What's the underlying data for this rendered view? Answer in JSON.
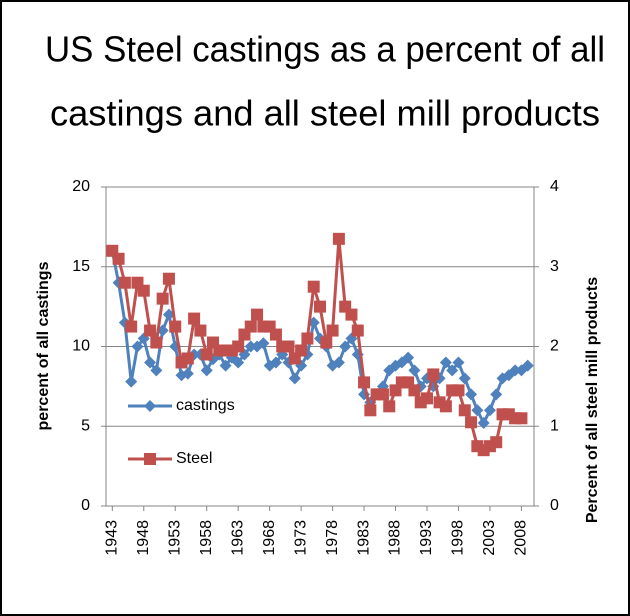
{
  "chart_data": {
    "type": "line",
    "title": [
      "US Steel castings as a percent of all",
      "castings and all steel mill products"
    ],
    "y_label": "percent of all castings",
    "y2_label": "Percent of all steel mill products",
    "x": [
      1943,
      1944,
      1945,
      1946,
      1947,
      1948,
      1949,
      1950,
      1951,
      1952,
      1953,
      1954,
      1955,
      1956,
      1957,
      1958,
      1959,
      1960,
      1961,
      1962,
      1963,
      1964,
      1965,
      1966,
      1967,
      1968,
      1969,
      1970,
      1971,
      1972,
      1973,
      1974,
      1975,
      1976,
      1977,
      1978,
      1979,
      1980,
      1981,
      1982,
      1983,
      1984,
      1985,
      1986,
      1987,
      1988,
      1989,
      1990,
      1991,
      1992,
      1993,
      1994,
      1995,
      1996,
      1997,
      1998,
      1999,
      2000,
      2001,
      2002,
      2003,
      2004,
      2005,
      2006,
      2007,
      2008,
      2009
    ],
    "xlim": [
      1942,
      2010
    ],
    "xticks": [
      1943,
      1948,
      1953,
      1958,
      1963,
      1968,
      1973,
      1978,
      1983,
      1988,
      1993,
      1998,
      2003,
      2008
    ],
    "ylim": [
      0,
      20
    ],
    "yticks": [
      0,
      5,
      10,
      15,
      20
    ],
    "y2lim": [
      0,
      4
    ],
    "y2ticks": [
      0,
      1,
      2,
      3,
      4
    ],
    "grid": true,
    "legend": "left",
    "series": [
      {
        "name": "castings",
        "color": "#4f81bd",
        "marker": "diamond",
        "values": [
          16,
          14,
          11.5,
          7.8,
          10,
          10.5,
          9,
          8.5,
          11,
          12,
          10,
          8.2,
          8.3,
          9.5,
          9.5,
          8.5,
          9.2,
          9.5,
          8.8,
          9.3,
          9,
          9.5,
          10,
          10,
          10.2,
          8.8,
          9,
          9.5,
          9,
          8,
          8.8,
          9.5,
          11.5,
          10.5,
          10,
          8.8,
          9,
          10,
          10.5,
          9.5,
          7,
          6.5,
          7,
          7.5,
          8.5,
          8.8,
          9,
          9.3,
          8.5,
          7.5,
          8,
          7.5,
          8,
          9,
          8.5,
          9,
          8,
          7,
          6,
          5.2,
          6,
          7,
          8,
          8.2,
          8.5,
          8.5,
          8.8
        ]
      },
      {
        "name": "Steel",
        "color": "#c0504d",
        "marker": "square",
        "axis": "y2",
        "values": [
          3.2,
          3.1,
          2.8,
          2.25,
          2.8,
          2.7,
          2.2,
          2.05,
          2.6,
          2.85,
          2.25,
          1.8,
          1.85,
          2.35,
          2.2,
          1.9,
          2.05,
          1.95,
          1.95,
          1.95,
          2.0,
          2.15,
          2.25,
          2.4,
          2.25,
          2.25,
          2.15,
          2.0,
          2.0,
          1.85,
          1.95,
          2.1,
          2.75,
          2.5,
          2.05,
          2.2,
          3.35,
          2.5,
          2.4,
          2.2,
          1.55,
          1.2,
          1.4,
          1.4,
          1.25,
          1.45,
          1.55,
          1.55,
          1.45,
          1.3,
          1.35,
          1.65,
          1.3,
          1.25,
          1.45,
          1.45,
          1.2,
          1.05,
          0.75,
          0.7,
          0.75,
          0.8,
          1.15,
          1.15,
          1.1,
          1.1,
          null
        ]
      }
    ]
  }
}
